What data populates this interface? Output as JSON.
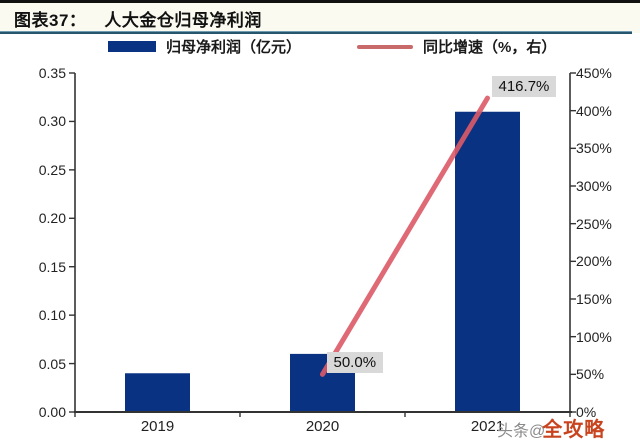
{
  "page": {
    "title_prefix": "图表37：",
    "title": "人大金仓归母净利润",
    "watermark": {
      "gray": "头条@",
      "orange": "全攻略"
    }
  },
  "legend": {
    "bar_label": "归母净利润（亿元）",
    "line_label": "同比增速（%，右）"
  },
  "colors": {
    "top_rule": "#111111",
    "title_rule": "#26556e",
    "bar": "#0a3282",
    "line": "#dc5a67",
    "legend_line": "#c96a6a",
    "axis": "#333333",
    "label_bg": "#d9d9d9",
    "watermark_gray": "#8b8b8b",
    "watermark_orange": "#c8441f"
  },
  "chart_data": {
    "type": "bar",
    "title": "人大金仓归母净利润",
    "categories": [
      "2019",
      "2020",
      "2021"
    ],
    "series": [
      {
        "name": "归母净利润（亿元）",
        "type": "bar",
        "axis": "left",
        "values": [
          0.04,
          0.06,
          0.31
        ]
      },
      {
        "name": "同比增速（%，右）",
        "type": "line",
        "axis": "right",
        "values": [
          null,
          50.0,
          416.7
        ],
        "point_labels": [
          null,
          "50.0%",
          "416.7%"
        ]
      }
    ],
    "left_axis": {
      "min": 0,
      "max": 0.35,
      "ticks": [
        "0.00",
        "0.05",
        "0.10",
        "0.15",
        "0.20",
        "0.25",
        "0.30",
        "0.35"
      ]
    },
    "right_axis": {
      "min": 0,
      "max": 450,
      "ticks": [
        "0%",
        "50%",
        "100%",
        "150%",
        "200%",
        "250%",
        "300%",
        "350%",
        "400%",
        "450%"
      ]
    },
    "legend_position": "top",
    "grid": false
  }
}
